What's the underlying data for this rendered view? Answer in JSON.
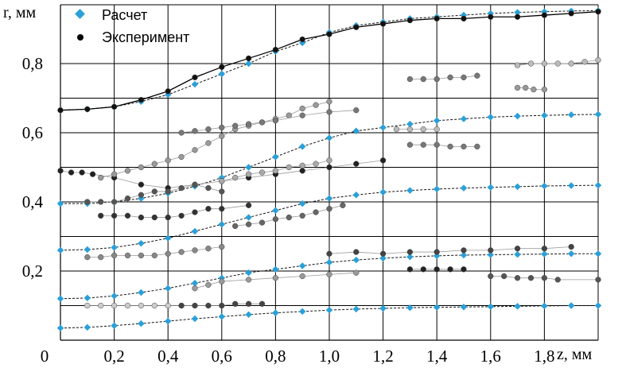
{
  "chart_data": {
    "type": "scatter",
    "title": "",
    "xlabel": "z, мм",
    "ylabel": "r, мм",
    "xlim": [
      0,
      2.0
    ],
    "ylim": [
      0,
      0.97
    ],
    "x_ticks": [
      "0",
      "0,2",
      "0,4",
      "0,6",
      "0,8",
      "1,0",
      "1,2",
      "1,4",
      "1,6",
      "1,8"
    ],
    "y_ticks": [
      "0,2",
      "0,4",
      "0,6",
      "0,8"
    ],
    "x_tick_values": [
      0,
      0.2,
      0.4,
      0.6,
      0.8,
      1.0,
      1.2,
      1.4,
      1.6,
      1.8
    ],
    "y_tick_values": [
      0.2,
      0.4,
      0.6,
      0.8
    ],
    "grid": true,
    "legend_position": "top-left",
    "legend": [
      {
        "label": "Расчет",
        "color": "#2aa0d8",
        "marker": "diamond"
      },
      {
        "label": "Эксперимент",
        "color": "#000000",
        "marker": "circle"
      }
    ],
    "calculated_series": [
      {
        "x": [
          0,
          0.1,
          0.2,
          0.3,
          0.4,
          0.5,
          0.6,
          0.7,
          0.8,
          0.9,
          1.0,
          1.1,
          1.2,
          1.3,
          1.4,
          1.5,
          1.6,
          1.7,
          1.8,
          1.9,
          2.0
        ],
        "y": [
          0.665,
          0.668,
          0.675,
          0.69,
          0.71,
          0.74,
          0.77,
          0.8,
          0.835,
          0.86,
          0.89,
          0.91,
          0.92,
          0.93,
          0.935,
          0.94,
          0.945,
          0.948,
          0.95,
          0.952,
          0.953
        ]
      },
      {
        "x": [
          0,
          0.1,
          0.2,
          0.3,
          0.4,
          0.5,
          0.6,
          0.7,
          0.8,
          0.9,
          1.0,
          1.1,
          1.2,
          1.3,
          1.4,
          1.5,
          1.6,
          1.7,
          1.8,
          1.9,
          2.0
        ],
        "y": [
          0.395,
          0.395,
          0.4,
          0.41,
          0.425,
          0.445,
          0.47,
          0.5,
          0.53,
          0.56,
          0.585,
          0.605,
          0.615,
          0.625,
          0.635,
          0.64,
          0.645,
          0.648,
          0.65,
          0.652,
          0.653
        ]
      },
      {
        "x": [
          0,
          0.1,
          0.2,
          0.3,
          0.4,
          0.5,
          0.6,
          0.7,
          0.8,
          0.9,
          1.0,
          1.1,
          1.2,
          1.3,
          1.4,
          1.5,
          1.6,
          1.7,
          1.8,
          1.9,
          2.0
        ],
        "y": [
          0.26,
          0.262,
          0.268,
          0.28,
          0.295,
          0.315,
          0.335,
          0.355,
          0.375,
          0.395,
          0.41,
          0.42,
          0.428,
          0.433,
          0.437,
          0.44,
          0.442,
          0.444,
          0.446,
          0.447,
          0.448
        ]
      },
      {
        "x": [
          0,
          0.1,
          0.2,
          0.3,
          0.4,
          0.5,
          0.6,
          0.7,
          0.8,
          0.9,
          1.0,
          1.1,
          1.2,
          1.3,
          1.4,
          1.5,
          1.6,
          1.7,
          1.8,
          1.9,
          2.0
        ],
        "y": [
          0.12,
          0.122,
          0.128,
          0.138,
          0.15,
          0.165,
          0.18,
          0.195,
          0.205,
          0.215,
          0.225,
          0.232,
          0.237,
          0.241,
          0.244,
          0.246,
          0.247,
          0.248,
          0.249,
          0.25,
          0.25
        ]
      },
      {
        "x": [
          0,
          0.1,
          0.2,
          0.3,
          0.4,
          0.5,
          0.6,
          0.7,
          0.8,
          0.9,
          1.0,
          1.1,
          1.2,
          1.3,
          1.4,
          1.5,
          1.6,
          1.7,
          1.8,
          1.9,
          2.0
        ],
        "y": [
          0.035,
          0.037,
          0.042,
          0.048,
          0.055,
          0.062,
          0.068,
          0.074,
          0.079,
          0.083,
          0.087,
          0.09,
          0.092,
          0.094,
          0.095,
          0.096,
          0.097,
          0.098,
          0.099,
          0.1,
          0.1
        ]
      }
    ],
    "experimental_series": [
      {
        "color": "#111111",
        "x": [
          0,
          0.1,
          0.2,
          0.3,
          0.4,
          0.5,
          0.6,
          0.7,
          0.8,
          0.9,
          1.0,
          1.1,
          1.2,
          1.3,
          1.4,
          1.5,
          1.6,
          1.7,
          1.8,
          1.9,
          2.0
        ],
        "y": [
          0.665,
          0.668,
          0.675,
          0.695,
          0.72,
          0.76,
          0.79,
          0.815,
          0.84,
          0.87,
          0.885,
          0.905,
          0.915,
          0.925,
          0.93,
          0.93,
          0.935,
          0.935,
          0.94,
          0.945,
          0.95
        ]
      },
      {
        "color": "#222222",
        "x": [
          0,
          0.04,
          0.08,
          0.12,
          0.2,
          0.3,
          0.4,
          0.5,
          0.6,
          0.7,
          0.8,
          0.9,
          1.0,
          1.1,
          1.2
        ],
        "y": [
          0.49,
          0.485,
          0.485,
          0.48,
          0.47,
          0.45,
          0.44,
          0.45,
          0.46,
          0.47,
          0.48,
          0.49,
          0.5,
          0.51,
          0.52
        ]
      },
      {
        "color": "#999999",
        "x": [
          0.15,
          0.2,
          0.25,
          0.3,
          0.35,
          0.4,
          0.45,
          0.5,
          0.55,
          0.6,
          0.65,
          0.7,
          0.75,
          0.8,
          0.85,
          0.9,
          0.95,
          1.0
        ],
        "y": [
          0.47,
          0.48,
          0.49,
          0.5,
          0.51,
          0.52,
          0.53,
          0.55,
          0.57,
          0.59,
          0.61,
          0.62,
          0.63,
          0.64,
          0.65,
          0.67,
          0.68,
          0.69
        ]
      },
      {
        "color": "#555555",
        "x": [
          0.1,
          0.15,
          0.2,
          0.25,
          0.3,
          0.35,
          0.4,
          0.45,
          0.5,
          0.55,
          0.6
        ],
        "y": [
          0.4,
          0.4,
          0.4,
          0.41,
          0.42,
          0.43,
          0.43,
          0.44,
          0.45,
          0.44,
          0.43
        ]
      },
      {
        "color": "#333333",
        "x": [
          0.15,
          0.2,
          0.25,
          0.3,
          0.35,
          0.4,
          0.45,
          0.5,
          0.55,
          0.6,
          0.7
        ],
        "y": [
          0.36,
          0.36,
          0.36,
          0.355,
          0.355,
          0.355,
          0.36,
          0.37,
          0.38,
          0.38,
          0.39
        ]
      },
      {
        "color": "#888888",
        "x": [
          0.1,
          0.15,
          0.2,
          0.25,
          0.3,
          0.35,
          0.4,
          0.45,
          0.5,
          0.55,
          0.6
        ],
        "y": [
          0.24,
          0.24,
          0.245,
          0.245,
          0.245,
          0.245,
          0.25,
          0.255,
          0.26,
          0.265,
          0.27
        ]
      },
      {
        "color": "#777777",
        "x": [
          0.45,
          0.5,
          0.55,
          0.6,
          0.65,
          0.7,
          0.75,
          0.8,
          0.9,
          1.0,
          1.1
        ],
        "y": [
          0.6,
          0.605,
          0.61,
          0.615,
          0.62,
          0.625,
          0.63,
          0.635,
          0.65,
          0.66,
          0.665
        ]
      },
      {
        "color": "#aaaaaa",
        "x": [
          0.6,
          0.65,
          0.7,
          0.75,
          0.8,
          0.85,
          0.9,
          0.95,
          1.0
        ],
        "y": [
          0.46,
          0.47,
          0.48,
          0.485,
          0.49,
          0.5,
          0.505,
          0.51,
          0.52
        ]
      },
      {
        "color": "#666666",
        "x": [
          0.65,
          0.7,
          0.75,
          0.8,
          0.85,
          0.9,
          0.95,
          1.0,
          1.05
        ],
        "y": [
          0.33,
          0.335,
          0.34,
          0.35,
          0.355,
          0.36,
          0.37,
          0.38,
          0.39
        ]
      },
      {
        "color": "#cccccc",
        "x": [
          0.1,
          0.15,
          0.2,
          0.25,
          0.3,
          0.35,
          0.4,
          0.45
        ],
        "y": [
          0.1,
          0.1,
          0.1,
          0.1,
          0.1,
          0.1,
          0.1,
          0.1
        ]
      },
      {
        "color": "#444444",
        "x": [
          0.45,
          0.5,
          0.55,
          0.6,
          0.65,
          0.7,
          0.75
        ],
        "y": [
          0.1,
          0.1,
          0.1,
          0.1,
          0.105,
          0.105,
          0.105
        ]
      },
      {
        "color": "#999999",
        "x": [
          0.5,
          0.55,
          0.6,
          0.7,
          0.8,
          0.9,
          1.0,
          1.1
        ],
        "y": [
          0.15,
          0.16,
          0.17,
          0.175,
          0.18,
          0.185,
          0.19,
          0.195
        ]
      },
      {
        "color": "#444444",
        "x": [
          1.0,
          1.1,
          1.2,
          1.3,
          1.4,
          1.5,
          1.6,
          1.7,
          1.8,
          1.9
        ],
        "y": [
          0.25,
          0.255,
          0.25,
          0.255,
          0.255,
          0.26,
          0.26,
          0.265,
          0.265,
          0.27
        ]
      },
      {
        "color": "#222222",
        "x": [
          1.3,
          1.35,
          1.4,
          1.45,
          1.5
        ],
        "y": [
          0.205,
          0.205,
          0.205,
          0.205,
          0.205
        ]
      },
      {
        "color": "#555555",
        "x": [
          1.6,
          1.65,
          1.7,
          1.75,
          1.8,
          1.85,
          2.0
        ],
        "y": [
          0.185,
          0.185,
          0.18,
          0.18,
          0.18,
          0.175,
          0.175
        ]
      },
      {
        "color": "#777777",
        "x": [
          1.3,
          1.35,
          1.4,
          1.45,
          1.5,
          1.55
        ],
        "y": [
          0.755,
          0.755,
          0.755,
          0.76,
          0.76,
          0.765
        ]
      },
      {
        "color": "#bbbbbb",
        "x": [
          1.7,
          1.75,
          1.8,
          1.85,
          1.9,
          1.95,
          2.0
        ],
        "y": [
          0.795,
          0.8,
          0.8,
          0.8,
          0.8,
          0.805,
          0.81
        ]
      },
      {
        "color": "#999999",
        "x": [
          1.7,
          1.73,
          1.76,
          1.8
        ],
        "y": [
          0.73,
          0.73,
          0.725,
          0.725
        ]
      },
      {
        "color": "#777777",
        "x": [
          1.3,
          1.35,
          1.4,
          1.45,
          1.5,
          1.55
        ],
        "y": [
          0.565,
          0.565,
          0.565,
          0.56,
          0.56,
          0.56
        ]
      },
      {
        "color": "#bbbbbb",
        "x": [
          1.25,
          1.3,
          1.35,
          1.4
        ],
        "y": [
          0.61,
          0.61,
          0.61,
          0.61
        ]
      }
    ]
  }
}
